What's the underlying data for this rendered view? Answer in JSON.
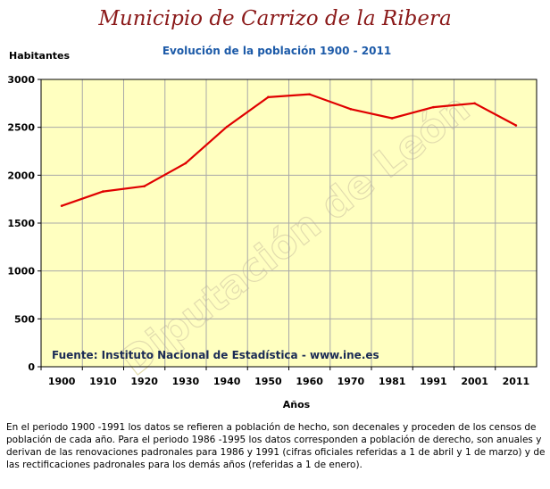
{
  "page": {
    "title": "Municipio de Carrizo de la Ribera",
    "footnote": "En el periodo 1900 -1991 los datos se refieren a población de hecho, son decenales y proceden de los censos de población de cada año. Para el periodo 1986 -1995 los datos corresponden a población de derecho, son anuales y derivan de las renovaciones padronales para 1986 y 1991 (cifras oficiales referidas a 1 de abril y 1 de marzo) y de las rectificaciones padronales para los demás años (referidas a 1 de enero).",
    "watermark": "Diputación de León"
  },
  "chart_data": {
    "type": "line",
    "title": "Evolución de la población 1900 - 2011",
    "ylabel": "Habitantes",
    "xlabel": "Años",
    "categories": [
      "1900",
      "1910",
      "1920",
      "1930",
      "1940",
      "1950",
      "1960",
      "1970",
      "1981",
      "1991",
      "2001",
      "2011"
    ],
    "series": [
      {
        "values": [
          1680,
          1830,
          1885,
          2125,
          2505,
          2815,
          2845,
          2690,
          2595,
          2710,
          2750,
          2520
        ]
      }
    ],
    "ylim": [
      0,
      3000
    ],
    "yticks": [
      0,
      500,
      1000,
      1500,
      2000,
      2500,
      3000
    ],
    "grid": true,
    "annotation": "Fuente: Instituto Nacional de Estadística - www.ine.es",
    "colors": {
      "line": "#e00000",
      "plot_background": "#ffffc0",
      "grid": "#a8a8a8",
      "title": "#8b1a1a",
      "subtitle": "#1c5aa8"
    }
  }
}
